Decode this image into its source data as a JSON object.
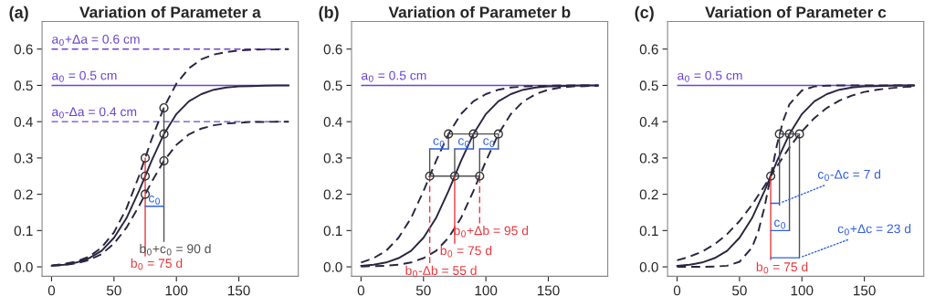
{
  "chart_data": [
    {
      "type": "line",
      "title": "Variation of Parameter a",
      "xlim": [
        -7.6,
        197.6
      ],
      "ylim": [
        -0.026,
        0.676
      ],
      "xticks": [
        0,
        50,
        100,
        150
      ],
      "yticks": [
        {
          "value": 0,
          "label": "0.0"
        },
        {
          "value": 0.1,
          "label": "0.1"
        },
        {
          "value": 0.2,
          "label": "0.2"
        },
        {
          "value": 0.3,
          "label": "0.3"
        },
        {
          "value": 0.4,
          "label": "0.4"
        },
        {
          "value": 0.5,
          "label": "0.5"
        },
        {
          "value": 0.6,
          "label": "0.6"
        }
      ],
      "ref_lines": [
        {
          "axis": "y",
          "value": 0.6,
          "label": "a$_{0}$+Δa = 0.6 cm",
          "color": "#6b45d0",
          "line_style": "dashed"
        },
        {
          "axis": "y",
          "value": 0.5,
          "label": "a$_{0}$ = 0.5 cm",
          "color": "#6b45d0",
          "line_style": "solid"
        },
        {
          "axis": "y",
          "value": 0.4,
          "label": "a$_{0}$-Δa = 0.4 cm",
          "color": "#6b45d0",
          "line_style": "dashed"
        }
      ],
      "series": [
        {
          "type": "line",
          "color": "#2b2540",
          "line_style": "solid",
          "x": [
            0,
            10,
            20,
            30,
            40,
            50,
            60,
            70,
            75,
            80,
            90,
            100,
            110,
            120,
            130,
            140,
            150,
            160,
            170,
            180,
            190
          ],
          "values": [
            0.003,
            0.006,
            0.012,
            0.024,
            0.044,
            0.08,
            0.134,
            0.209,
            0.25,
            0.291,
            0.366,
            0.421,
            0.456,
            0.476,
            0.488,
            0.494,
            0.497,
            0.498,
            0.499,
            0.5,
            0.5
          ]
        },
        {
          "type": "line",
          "color": "#2b2540",
          "line_style": "dashed",
          "x": [
            0,
            10,
            20,
            30,
            40,
            50,
            60,
            70,
            75,
            80,
            90,
            100,
            110,
            120,
            130,
            140,
            150,
            160,
            170,
            180,
            190
          ],
          "values": [
            0.004,
            0.008,
            0.015,
            0.028,
            0.053,
            0.095,
            0.161,
            0.25,
            0.3,
            0.35,
            0.439,
            0.505,
            0.547,
            0.572,
            0.585,
            0.592,
            0.596,
            0.598,
            0.599,
            0.599,
            0.6
          ]
        },
        {
          "type": "line",
          "color": "#2b2540",
          "line_style": "dashed",
          "x": [
            0,
            10,
            20,
            30,
            40,
            50,
            60,
            70,
            75,
            80,
            90,
            100,
            110,
            120,
            130,
            140,
            150,
            160,
            170,
            180,
            190
          ],
          "values": [
            0.003,
            0.005,
            0.01,
            0.019,
            0.035,
            0.064,
            0.108,
            0.167,
            0.2,
            0.233,
            0.292,
            0.336,
            0.365,
            0.381,
            0.39,
            0.395,
            0.397,
            0.399,
            0.399,
            0.4,
            0.4
          ]
        },
        {
          "type": "line",
          "color": "#e8383d",
          "line_style": "solid",
          "x": [
            75,
            75
          ],
          "values": [
            0.03,
            0.3
          ]
        },
        {
          "type": "line",
          "color": "#505050",
          "line_style": "solid",
          "x": [
            90,
            90
          ],
          "values": [
            0.07,
            0.438
          ]
        },
        {
          "type": "line",
          "color": "#3060e0",
          "line_style": "solid",
          "x": [
            75,
            90
          ],
          "values": [
            0.167,
            0.167
          ]
        },
        {
          "type": "scatter",
          "color": "#333333",
          "marker": "circle",
          "x": [
            75,
            75,
            75,
            90,
            90,
            90
          ],
          "values": [
            0.3,
            0.25,
            0.2,
            0.438,
            0.366,
            0.292
          ]
        }
      ],
      "annotations": [
        "(a)",
        {
          "text": "b$_{0}$ = 75 d",
          "x": 75,
          "y": 0.03
        },
        {
          "text": "b$_{0}$+c$_{0}$ = 90 d",
          "x": 90,
          "y": 0.07
        },
        {
          "text": "c$_{0}$",
          "x": 82.5,
          "y": 0.167
        }
      ]
    },
    {
      "type": "line",
      "title": "Variation of Parameter b",
      "xlim": [
        -7.6,
        197.6
      ],
      "ylim": [
        -0.026,
        0.676
      ],
      "xticks": [
        0,
        50,
        100,
        150
      ],
      "yticks": [
        {
          "value": 0,
          "label": "0.0"
        },
        {
          "value": 0.1,
          "label": "0.1"
        },
        {
          "value": 0.2,
          "label": "0.2"
        },
        {
          "value": 0.3,
          "label": "0.3"
        },
        {
          "value": 0.4,
          "label": "0.4"
        },
        {
          "value": 0.5,
          "label": "0.5"
        },
        {
          "value": 0.6,
          "label": "0.6"
        }
      ],
      "ref_lines": [
        {
          "axis": "y",
          "value": 0.5,
          "label": "a$_{0}$ = 0.5 cm",
          "color": "#6b45d0",
          "line_style": "solid"
        }
      ],
      "series": [
        {
          "type": "line",
          "color": "#2b2540",
          "line_style": "solid",
          "x": [
            0,
            10,
            20,
            30,
            40,
            50,
            60,
            70,
            75,
            80,
            90,
            100,
            110,
            120,
            130,
            140,
            150,
            160,
            170,
            180,
            190
          ],
          "values": [
            0.003,
            0.006,
            0.012,
            0.024,
            0.044,
            0.08,
            0.134,
            0.209,
            0.25,
            0.291,
            0.366,
            0.421,
            0.456,
            0.476,
            0.488,
            0.494,
            0.497,
            0.498,
            0.499,
            0.5,
            0.5
          ]
        },
        {
          "type": "line",
          "color": "#2b2540",
          "line_style": "dashed",
          "x": [
            0,
            10,
            20,
            30,
            40,
            50,
            55,
            60,
            70,
            80,
            90,
            100,
            110,
            120,
            130,
            140,
            150,
            160,
            170,
            180,
            190
          ],
          "values": [
            0.012,
            0.024,
            0.044,
            0.08,
            0.134,
            0.209,
            0.25,
            0.291,
            0.366,
            0.421,
            0.456,
            0.476,
            0.488,
            0.494,
            0.497,
            0.498,
            0.499,
            0.5,
            0.5,
            0.5,
            0.5
          ]
        },
        {
          "type": "line",
          "color": "#2b2540",
          "line_style": "dashed",
          "x": [
            0,
            10,
            20,
            30,
            40,
            50,
            60,
            70,
            80,
            90,
            95,
            100,
            110,
            120,
            130,
            140,
            150,
            160,
            170,
            180,
            190
          ],
          "values": [
            0.001,
            0.002,
            0.003,
            0.006,
            0.012,
            0.024,
            0.044,
            0.08,
            0.134,
            0.209,
            0.25,
            0.291,
            0.366,
            0.421,
            0.456,
            0.476,
            0.488,
            0.494,
            0.497,
            0.498,
            0.499
          ]
        },
        {
          "type": "line",
          "color": "#e8383d",
          "line_style": "dashed",
          "x": [
            55,
            55
          ],
          "values": [
            0.01,
            0.25
          ]
        },
        {
          "type": "line",
          "color": "#e8383d",
          "line_style": "solid",
          "x": [
            75,
            75
          ],
          "values": [
            0.065,
            0.25
          ]
        },
        {
          "type": "line",
          "color": "#e8383d",
          "line_style": "dashed",
          "x": [
            95,
            95
          ],
          "values": [
            0.12,
            0.25
          ]
        },
        {
          "type": "line",
          "color": "#505050",
          "line_style": "solid",
          "x": [
            55,
            95
          ],
          "values": [
            0.25,
            0.25
          ]
        },
        {
          "type": "line",
          "color": "#505050",
          "line_style": "solid",
          "x": [
            70,
            110
          ],
          "values": [
            0.366,
            0.366
          ]
        },
        {
          "type": "line",
          "color": "#505050",
          "line_style": "solid",
          "x": [
            55,
            55
          ],
          "values": [
            0.25,
            0.325
          ]
        },
        {
          "type": "line",
          "color": "#505050",
          "line_style": "solid",
          "x": [
            75,
            75
          ],
          "values": [
            0.25,
            0.325
          ]
        },
        {
          "type": "line",
          "color": "#505050",
          "line_style": "solid",
          "x": [
            95,
            95
          ],
          "values": [
            0.25,
            0.325
          ]
        },
        {
          "type": "line",
          "color": "#505050",
          "line_style": "solid",
          "x": [
            70,
            70
          ],
          "values": [
            0.325,
            0.366
          ]
        },
        {
          "type": "line",
          "color": "#505050",
          "line_style": "solid",
          "x": [
            90,
            90
          ],
          "values": [
            0.325,
            0.366
          ]
        },
        {
          "type": "line",
          "color": "#505050",
          "line_style": "solid",
          "x": [
            110,
            110
          ],
          "values": [
            0.325,
            0.366
          ]
        },
        {
          "type": "line",
          "color": "#3060e0",
          "line_style": "solid",
          "x": [
            55,
            70
          ],
          "values": [
            0.325,
            0.325
          ]
        },
        {
          "type": "line",
          "color": "#3060e0",
          "line_style": "solid",
          "x": [
            75,
            90
          ],
          "values": [
            0.325,
            0.325
          ]
        },
        {
          "type": "line",
          "color": "#3060e0",
          "line_style": "solid",
          "x": [
            95,
            110
          ],
          "values": [
            0.325,
            0.325
          ]
        },
        {
          "type": "scatter",
          "color": "#333333",
          "marker": "circle",
          "x": [
            55,
            75,
            95,
            70,
            90,
            110
          ],
          "values": [
            0.25,
            0.25,
            0.25,
            0.366,
            0.366,
            0.366
          ]
        }
      ],
      "annotations": [
        "(b)",
        {
          "text": "b$_{0}$-Δb = 55 d",
          "x": 55,
          "y": 0.01
        },
        {
          "text": "b$_{0}$ = 75 d",
          "x": 75,
          "y": 0.065
        },
        {
          "text": "b$_{0}$+Δb = 95 d",
          "x": 95,
          "y": 0.12
        },
        {
          "text": "c$_{0}$",
          "x": 62.5,
          "y": 0.325
        },
        {
          "text": "c$_{0}$",
          "x": 82.5,
          "y": 0.325
        },
        {
          "text": "c$_{0}$",
          "x": 102.5,
          "y": 0.325
        }
      ]
    },
    {
      "type": "line",
      "title": "Variation of Parameter c",
      "xlim": [
        -7.6,
        197.6
      ],
      "ylim": [
        -0.026,
        0.676
      ],
      "xticks": [
        0,
        50,
        100,
        150
      ],
      "yticks": [
        {
          "value": 0,
          "label": "0.0"
        },
        {
          "value": 0.1,
          "label": "0.1"
        },
        {
          "value": 0.2,
          "label": "0.2"
        },
        {
          "value": 0.3,
          "label": "0.3"
        },
        {
          "value": 0.4,
          "label": "0.4"
        },
        {
          "value": 0.5,
          "label": "0.5"
        },
        {
          "value": 0.6,
          "label": "0.6"
        }
      ],
      "ref_lines": [
        {
          "axis": "y",
          "value": 0.5,
          "label": "a$_{0}$ = 0.5 cm",
          "color": "#6b45d0",
          "line_style": "solid"
        }
      ],
      "series": [
        {
          "type": "line",
          "color": "#2b2540",
          "line_style": "solid",
          "x": [
            0,
            10,
            20,
            30,
            40,
            50,
            60,
            70,
            75,
            80,
            90,
            100,
            110,
            120,
            130,
            140,
            150,
            160,
            170,
            180,
            190
          ],
          "values": [
            0.003,
            0.006,
            0.012,
            0.024,
            0.044,
            0.08,
            0.134,
            0.209,
            0.25,
            0.291,
            0.366,
            0.421,
            0.456,
            0.476,
            0.488,
            0.494,
            0.497,
            0.498,
            0.499,
            0.5,
            0.5
          ]
        },
        {
          "type": "line",
          "color": "#2b2540",
          "line_style": "dashed",
          "x": [
            0,
            20,
            30,
            40,
            50,
            60,
            65,
            70,
            75,
            80,
            85,
            90,
            100,
            110,
            120,
            130,
            150,
            190
          ],
          "values": [
            0.0,
            0.0,
            0.001,
            0.003,
            0.014,
            0.053,
            0.097,
            0.164,
            0.25,
            0.336,
            0.403,
            0.448,
            0.486,
            0.497,
            0.499,
            0.5,
            0.5,
            0.5
          ]
        },
        {
          "type": "line",
          "color": "#2b2540",
          "line_style": "dashed",
          "x": [
            0,
            10,
            20,
            30,
            40,
            50,
            60,
            70,
            75,
            80,
            90,
            98,
            110,
            120,
            130,
            140,
            150,
            160,
            170,
            180,
            190
          ],
          "values": [
            0.018,
            0.028,
            0.042,
            0.062,
            0.09,
            0.126,
            0.171,
            0.223,
            0.25,
            0.277,
            0.329,
            0.366,
            0.41,
            0.438,
            0.458,
            0.472,
            0.482,
            0.488,
            0.492,
            0.495,
            0.497
          ]
        },
        {
          "type": "line",
          "color": "#e8383d",
          "line_style": "solid",
          "x": [
            75,
            75
          ],
          "values": [
            0.02,
            0.25
          ]
        },
        {
          "type": "line",
          "color": "#505050",
          "line_style": "solid",
          "x": [
            82,
            98
          ],
          "values": [
            0.366,
            0.366
          ]
        },
        {
          "type": "line",
          "color": "#505050",
          "line_style": "solid",
          "x": [
            82,
            82
          ],
          "values": [
            0.17,
            0.366
          ]
        },
        {
          "type": "line",
          "color": "#505050",
          "line_style": "solid",
          "x": [
            90,
            90
          ],
          "values": [
            0.1,
            0.366
          ]
        },
        {
          "type": "line",
          "color": "#505050",
          "line_style": "solid",
          "x": [
            98,
            98
          ],
          "values": [
            0.025,
            0.366
          ]
        },
        {
          "type": "line",
          "color": "#3060e0",
          "line_style": "solid",
          "x": [
            75,
            82
          ],
          "values": [
            0.175,
            0.175
          ]
        },
        {
          "type": "line",
          "color": "#3060e0",
          "line_style": "solid",
          "x": [
            75,
            90
          ],
          "values": [
            0.1,
            0.1
          ]
        },
        {
          "type": "line",
          "color": "#3060e0",
          "line_style": "solid",
          "x": [
            75,
            98
          ],
          "values": [
            0.025,
            0.025
          ]
        },
        {
          "type": "scatter",
          "color": "#333333",
          "marker": "circle",
          "x": [
            75,
            82,
            90,
            98
          ],
          "values": [
            0.25,
            0.366,
            0.366,
            0.366
          ]
        }
      ],
      "annotations": [
        "(c)",
        {
          "text": "b$_{0}$ = 75 d",
          "x": 75,
          "y": 0.02
        },
        {
          "text": "c$_{0}$",
          "x": 82.5,
          "y": 0.1
        },
        {
          "text": "c$_{0}$-Δc = 7 d",
          "x": 82,
          "y": 0.175
        },
        {
          "text": "c$_{0}$+Δc = 23 d",
          "x": 98,
          "y": 0.025
        }
      ]
    }
  ]
}
